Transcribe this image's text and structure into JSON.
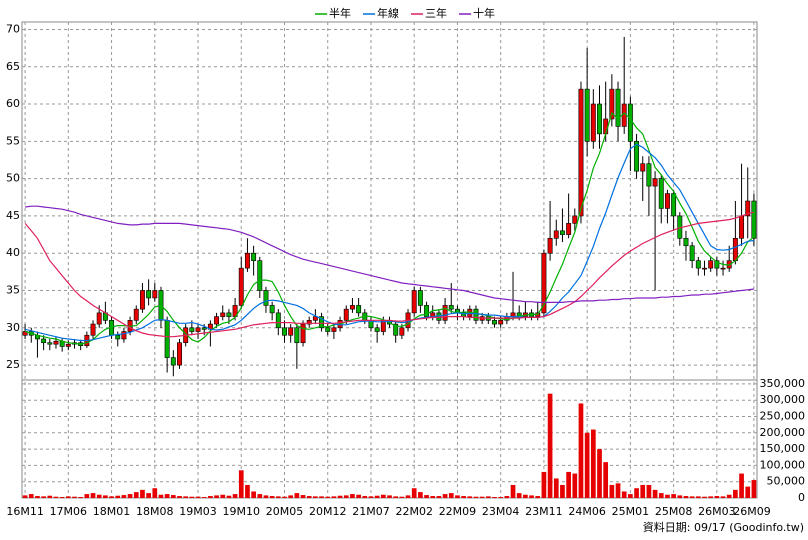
{
  "chart_data": {
    "type": "candlestick",
    "legend": "top",
    "categories": [
      "16M11",
      null,
      null,
      null,
      null,
      null,
      null,
      "17M06",
      null,
      null,
      null,
      null,
      null,
      null,
      "18M01",
      null,
      null,
      null,
      null,
      null,
      null,
      "18M08",
      null,
      null,
      null,
      null,
      null,
      null,
      "19M03",
      null,
      null,
      null,
      null,
      null,
      null,
      "19M10",
      null,
      null,
      null,
      null,
      null,
      null,
      "20M05",
      null,
      null,
      null,
      null,
      null,
      null,
      "20M12",
      null,
      null,
      null,
      null,
      null,
      null,
      "21M07",
      null,
      null,
      null,
      null,
      null,
      null,
      "22M02",
      null,
      null,
      null,
      null,
      null,
      null,
      "22M09",
      null,
      null,
      null,
      null,
      null,
      null,
      "23M04",
      null,
      null,
      null,
      null,
      null,
      null,
      "23M11",
      null,
      null,
      null,
      null,
      null,
      null,
      "24M06",
      null,
      null,
      null,
      null,
      null,
      null,
      "25M01",
      null,
      null,
      null,
      null,
      null,
      null,
      "25M08",
      null,
      null,
      null,
      null,
      null,
      null,
      "26M03",
      null,
      null,
      null,
      null,
      null,
      "26M09"
    ],
    "open": [
      29,
      29.5,
      29,
      28.5,
      28,
      27.8,
      28.2,
      27.5,
      27.8,
      28,
      27.6,
      29,
      30.5,
      32,
      31,
      29,
      28.5,
      29.5,
      31,
      32.5,
      35,
      34,
      35,
      31,
      26,
      25,
      28,
      30,
      29.5,
      30,
      29.8,
      30.5,
      31.5,
      32,
      31.5,
      33,
      38,
      40,
      39,
      35,
      33,
      32,
      30,
      29,
      30,
      28,
      30.5,
      31,
      31.5,
      30,
      29.5,
      30,
      31,
      32.5,
      33,
      32,
      31,
      30,
      29.5,
      31,
      30.5,
      29,
      30,
      32,
      35,
      33,
      31.5,
      32,
      31,
      33,
      32.5,
      32,
      31.5,
      32.5,
      31,
      31.5,
      31,
      30.5,
      31,
      31.5,
      32,
      31.5,
      32,
      31.5,
      32,
      40,
      42,
      43,
      42.5,
      44,
      45,
      62,
      55,
      60,
      56,
      58,
      62,
      57,
      60,
      55,
      51,
      52,
      49,
      50,
      46,
      48,
      45,
      42,
      41,
      39,
      38,
      38,
      39,
      38,
      38,
      39,
      42,
      45,
      47
    ],
    "high": [
      30.5,
      30,
      29.5,
      29,
      28.5,
      28.8,
      28.6,
      28.3,
      28.5,
      28.4,
      29.5,
      31,
      33,
      33.5,
      31.5,
      29.5,
      30,
      31.5,
      33,
      36,
      36.5,
      36,
      35.5,
      31.5,
      27,
      28.5,
      30.5,
      31,
      30.5,
      30.5,
      31,
      32,
      33,
      32.5,
      34,
      39.5,
      42,
      41,
      39.5,
      35.5,
      33.5,
      32.5,
      31,
      30.5,
      30.5,
      31,
      31.5,
      32.5,
      32,
      30.5,
      30.5,
      31.5,
      33,
      34,
      34,
      32.5,
      31.5,
      30.5,
      31.5,
      31.5,
      31,
      30.5,
      32.5,
      35.5,
      35.5,
      33.5,
      33,
      32.5,
      34,
      36,
      33,
      32.5,
      33,
      33,
      32,
      32,
      31.5,
      31.5,
      32,
      37.5,
      33,
      33.5,
      32.5,
      33.5,
      40.5,
      47,
      44.5,
      46,
      48,
      46,
      63,
      67.5,
      62,
      62.5,
      63,
      64,
      63,
      69,
      61,
      56,
      53,
      53,
      51,
      50.5,
      48.5,
      48.5,
      45.5,
      43,
      41.5,
      39.5,
      39,
      39.5,
      39.5,
      39,
      41,
      47,
      52,
      51.5,
      48
    ],
    "low": [
      28.5,
      28,
      26,
      27,
      27,
      27.2,
      26.8,
      27,
      27.2,
      27,
      27.3,
      28.5,
      30,
      30.5,
      28.5,
      27.5,
      28,
      29,
      30.5,
      32,
      33,
      33.5,
      30,
      24,
      23.5,
      24.5,
      27.5,
      29,
      28.5,
      29,
      27.5,
      30,
      31,
      30.5,
      31,
      32.5,
      37.5,
      37,
      34,
      32,
      31,
      29,
      28,
      28,
      24.5,
      27.5,
      30,
      30.5,
      29.5,
      29,
      28.5,
      29.5,
      30.5,
      32,
      31.5,
      30.5,
      29.5,
      28,
      29,
      30,
      28,
      28.5,
      29.5,
      31.5,
      32,
      31,
      31,
      30.5,
      30.5,
      32,
      31,
      31,
      31,
      30.5,
      30.5,
      30.5,
      30,
      30,
      30.5,
      31,
      31,
      31,
      31,
      31,
      31.5,
      39,
      41,
      41.5,
      42,
      43,
      44,
      53,
      54,
      54,
      55,
      57,
      55,
      56,
      51,
      50,
      47,
      45,
      35,
      44,
      44,
      43,
      41,
      39,
      38,
      37,
      37,
      37.5,
      37,
      37,
      37.5,
      38.5,
      41,
      42,
      41
    ],
    "close": [
      29.5,
      29,
      28.5,
      28,
      27.8,
      28.2,
      27.5,
      27.8,
      28,
      27.6,
      29,
      30.5,
      32,
      31,
      29,
      28.5,
      29.5,
      31,
      32.5,
      35,
      34,
      35,
      31,
      26,
      25,
      28,
      30,
      29.5,
      30,
      29.8,
      30.5,
      31.5,
      32,
      31.5,
      33,
      38,
      40,
      39,
      35,
      33,
      32,
      30,
      29,
      30,
      28,
      30.5,
      31,
      31.5,
      30,
      29.5,
      30,
      31,
      32.5,
      33,
      32,
      31,
      30,
      29.5,
      31,
      30.5,
      29,
      30,
      32,
      35,
      33,
      31.5,
      32,
      31,
      33,
      32.5,
      32,
      31.5,
      32.5,
      31,
      31.5,
      31,
      30.5,
      31,
      31.5,
      32,
      31.5,
      32,
      31.5,
      32,
      40,
      42,
      43,
      42.5,
      44,
      45,
      62,
      55,
      60,
      56,
      58,
      62,
      57,
      60,
      55,
      51,
      52,
      49,
      50,
      46,
      48,
      45,
      42,
      41,
      39,
      38,
      38,
      39,
      38,
      38,
      39,
      42,
      45,
      47,
      42
    ],
    "up_color": "#e60000",
    "down_color": "#00b000",
    "series": [
      {
        "name": "半年",
        "color": "#00b000",
        "values": [
          29.5,
          29.3,
          29,
          28.8,
          28.6,
          28.5,
          28.2,
          28,
          27.9,
          27.8,
          28,
          28.4,
          29.2,
          29.8,
          30.1,
          30.3,
          30.3,
          30.2,
          30.3,
          31,
          31.8,
          32.8,
          33,
          32.2,
          31,
          30,
          29.2,
          28.4,
          28.1,
          28.7,
          29.6,
          30.2,
          30.6,
          30.8,
          31.4,
          32.7,
          34.4,
          35.8,
          36.4,
          36.4,
          36.2,
          34.8,
          33,
          31.5,
          30.3,
          29.9,
          29.8,
          30,
          30.2,
          30.1,
          30.4,
          30.5,
          30.8,
          31.1,
          31.3,
          31.6,
          31.5,
          31.3,
          31.1,
          30.7,
          30.2,
          30.2,
          30.5,
          31.2,
          31.7,
          31.8,
          32.3,
          32.4,
          32.6,
          32.2,
          32,
          32.1,
          32.1,
          31.9,
          31.8,
          31.6,
          31.3,
          31.2,
          31.1,
          31.3,
          31.5,
          31.7,
          31.8,
          31.8,
          33.1,
          34.8,
          36.7,
          38.5,
          40.7,
          42.8,
          46,
          48.4,
          51.4,
          53.4,
          56,
          58.8,
          58,
          58.8,
          58,
          56.8,
          56,
          53.8,
          51.5,
          50.5,
          49.3,
          48.3,
          46.7,
          45.3,
          43.5,
          41.6,
          40.3,
          39.5,
          38.8,
          38.5,
          38.4,
          39,
          40,
          41.5,
          42.2
        ]
      },
      {
        "name": "年線",
        "color": "#0070e0",
        "values": [
          29.8,
          29.6,
          29.4,
          29.2,
          29,
          28.8,
          28.6,
          28.5,
          28.4,
          28.3,
          28.3,
          28.4,
          28.6,
          28.8,
          29,
          29.1,
          29.2,
          29.4,
          29.7,
          30,
          30.5,
          31,
          31.1,
          31,
          30.8,
          30.6,
          30.6,
          30.7,
          30.5,
          30.2,
          29.8,
          29.7,
          29.8,
          30.1,
          30.4,
          31,
          31.8,
          32.6,
          33.2,
          33.6,
          33.7,
          33.6,
          33.4,
          33.2,
          33,
          32.6,
          32,
          31.6,
          31.2,
          30.8,
          30.5,
          30.4,
          30.4,
          30.6,
          30.8,
          30.9,
          30.9,
          30.8,
          30.8,
          30.9,
          30.8,
          30.7,
          30.8,
          31.1,
          31.3,
          31.4,
          31.5,
          31.6,
          31.7,
          31.9,
          32,
          31.9,
          31.9,
          31.9,
          31.8,
          31.7,
          31.7,
          31.6,
          31.5,
          31.5,
          31.5,
          31.4,
          31.4,
          31.4,
          31.5,
          32.2,
          33,
          34,
          34.8,
          35.9,
          37,
          38.9,
          40.9,
          43.3,
          45.4,
          47.8,
          50.1,
          52.1,
          54,
          54.6,
          54.2,
          53.5,
          52.8,
          51.8,
          50.5,
          49.5,
          48.5,
          47,
          45.5,
          44,
          42.5,
          41,
          40.5,
          40.4,
          40.5,
          40.8,
          41.2,
          41.6,
          41.7
        ]
      },
      {
        "name": "三年",
        "color": "#e0205a",
        "values": [
          44,
          43,
          42,
          40.5,
          39,
          38,
          37,
          36,
          35,
          34.2,
          33.6,
          33,
          32.5,
          32,
          31.5,
          31,
          30.5,
          30,
          29.6,
          29.3,
          29.1,
          29,
          28.9,
          28.8,
          28.8,
          28.9,
          29,
          29.1,
          29.2,
          29.3,
          29.4,
          29.5,
          29.6,
          29.7,
          29.8,
          30,
          30.2,
          30.4,
          30.5,
          30.6,
          30.7,
          30.7,
          30.7,
          30.7,
          30.6,
          30.6,
          30.6,
          30.6,
          30.6,
          30.6,
          30.6,
          30.7,
          30.8,
          30.9,
          31,
          31,
          31,
          31,
          31,
          31,
          30.9,
          30.9,
          31,
          31.1,
          31.2,
          31.3,
          31.4,
          31.4,
          31.5,
          31.5,
          31.5,
          31.5,
          31.4,
          31.4,
          31.3,
          31.3,
          31.3,
          31.3,
          31.3,
          31.3,
          31.3,
          31.4,
          31.4,
          31.4,
          31.5,
          31.8,
          32.2,
          32.6,
          33,
          33.5,
          34.2,
          35,
          35.8,
          36.7,
          37.5,
          38.3,
          39,
          39.7,
          40.3,
          40.8,
          41.3,
          41.7,
          42.1,
          42.5,
          42.8,
          43.1,
          43.4,
          43.6,
          43.8,
          44,
          44.1,
          44.2,
          44.3,
          44.4,
          44.5,
          44.7,
          45,
          45.3,
          45.5
        ]
      },
      {
        "name": "十年",
        "color": "#8020c0",
        "values": [
          46.2,
          46.3,
          46.3,
          46.2,
          46.1,
          46,
          45.9,
          45.7,
          45.5,
          45.2,
          45,
          44.8,
          44.6,
          44.4,
          44.2,
          44,
          43.9,
          43.8,
          43.8,
          43.9,
          43.9,
          44,
          44,
          44,
          44,
          44,
          43.9,
          43.8,
          43.7,
          43.6,
          43.5,
          43.4,
          43.3,
          43.2,
          43,
          42.8,
          42.5,
          42.2,
          41.8,
          41.4,
          41,
          40.6,
          40.2,
          39.8,
          39.5,
          39.2,
          39,
          38.8,
          38.6,
          38.4,
          38.2,
          38,
          37.8,
          37.6,
          37.4,
          37.2,
          37,
          36.8,
          36.6,
          36.4,
          36.2,
          36,
          35.9,
          35.8,
          35.7,
          35.6,
          35.5,
          35.4,
          35.3,
          35.2,
          35.1,
          35,
          34.8,
          34.6,
          34.4,
          34.2,
          34,
          33.9,
          33.8,
          33.7,
          33.6,
          33.5,
          33.5,
          33.4,
          33.4,
          33.4,
          33.4,
          33.4,
          33.5,
          33.5,
          33.6,
          33.6,
          33.6,
          33.7,
          33.7,
          33.8,
          33.8,
          33.9,
          33.9,
          34,
          34,
          34,
          34,
          34.1,
          34.1,
          34.2,
          34.2,
          34.3,
          34.4,
          34.4,
          34.5,
          34.5,
          34.6,
          34.7,
          34.8,
          34.9,
          35,
          35.1,
          35.2
        ]
      }
    ],
    "ylim": [
      23,
      71
    ],
    "yticks": [
      25,
      30,
      35,
      40,
      45,
      50,
      55,
      60,
      65,
      70
    ],
    "grid": true,
    "volume": {
      "color": "#e60000",
      "ylim": [
        0,
        362000
      ],
      "yticks": [
        0,
        {
          "value": 50000,
          "label": "50,000"
        },
        {
          "value": 100000,
          "label": "100,000"
        },
        {
          "value": 150000,
          "label": "150,000"
        },
        {
          "value": 200000,
          "label": "200,000"
        },
        {
          "value": 250000,
          "label": "250,000"
        },
        {
          "value": 300000,
          "label": "300,000"
        },
        {
          "value": 350000,
          "label": "350,000"
        }
      ],
      "values": [
        8000,
        12000,
        6000,
        5000,
        7000,
        4000,
        3000,
        5000,
        4000,
        3000,
        12000,
        15000,
        10000,
        8000,
        5000,
        7000,
        9000,
        12000,
        18000,
        25000,
        15000,
        30000,
        10000,
        12000,
        9000,
        6000,
        5000,
        4000,
        4000,
        3000,
        6000,
        8000,
        10000,
        7000,
        12000,
        85000,
        40000,
        20000,
        12000,
        8000,
        6000,
        5000,
        4000,
        8000,
        15000,
        9000,
        6000,
        5000,
        5000,
        4000,
        5000,
        7000,
        8000,
        12000,
        10000,
        6000,
        5000,
        7000,
        10000,
        8000,
        5000,
        4000,
        8000,
        30000,
        18000,
        9000,
        6000,
        6000,
        12000,
        15000,
        8000,
        6000,
        5000,
        4000,
        4000,
        5000,
        3000,
        3000,
        6000,
        40000,
        15000,
        10000,
        8000,
        6000,
        80000,
        320000,
        60000,
        40000,
        80000,
        75000,
        290000,
        200000,
        210000,
        150000,
        110000,
        40000,
        45000,
        20000,
        12000,
        30000,
        40000,
        40000,
        25000,
        15000,
        10000,
        12000,
        8000,
        6000,
        5000,
        5000,
        4000,
        5000,
        6000,
        5000,
        10000,
        25000,
        75000,
        35000,
        55000
      ]
    },
    "source": "資料日期: 09/17 (Goodinfo.tw)"
  }
}
